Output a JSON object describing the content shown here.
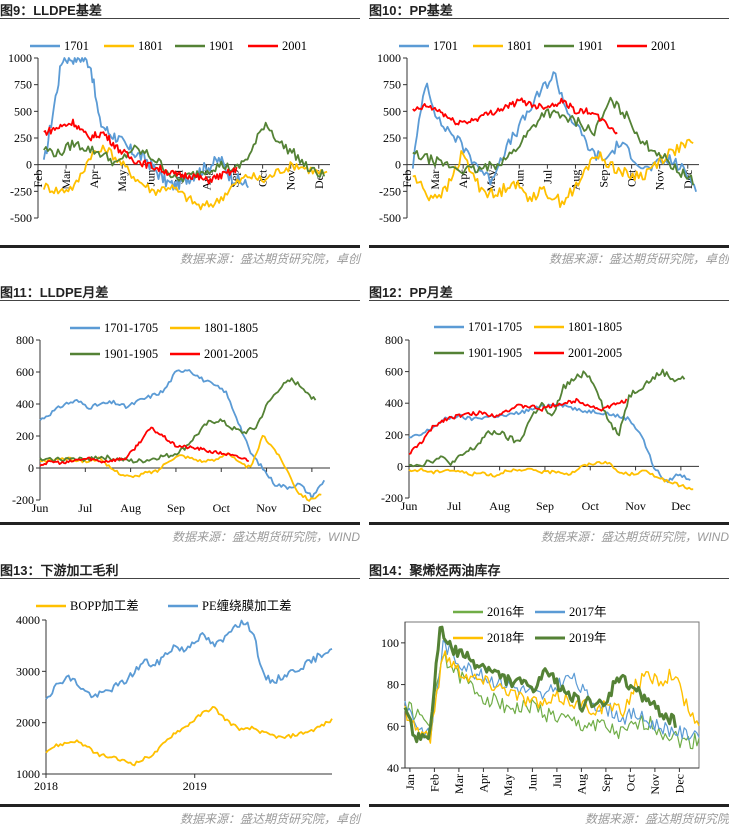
{
  "panels": [
    {
      "id": "fig9",
      "title": "图9：LLDPE基差",
      "source": "数据来源：盛达期货研究院，卓创"
    },
    {
      "id": "fig10",
      "title": "图10：PP基差",
      "source": "数据来源：盛达期货研究院，卓创"
    },
    {
      "id": "fig11",
      "title": "图11：LLDPE月差",
      "source": "数据来源：盛达期货研究院，WIND"
    },
    {
      "id": "fig12",
      "title": "图12：PP月差",
      "source": "数据来源：盛达期货研究院，WIND"
    },
    {
      "id": "fig13",
      "title": "图13：下游加工毛利",
      "source": "数据来源：盛达期货研究院，卓创"
    },
    {
      "id": "fig14",
      "title": "图14：聚烯烃两油库存",
      "source": "数据来源：盛达期货研究院"
    }
  ],
  "chart_data": [
    {
      "id": "fig9",
      "type": "line",
      "ylim": [
        -500,
        1000
      ],
      "yticks": [
        -500,
        -250,
        0,
        250,
        500,
        750,
        1000
      ],
      "xticks": [
        "Feb",
        "Mar",
        "Apr",
        "May",
        "Jun",
        "Jul",
        "Aug",
        "Sep",
        "Oct",
        "Nov",
        "Dec"
      ],
      "series": [
        {
          "name": "1701",
          "color": "#5b9bd5",
          "values": [
            0,
            500,
            1000,
            1000,
            1000,
            950,
            400,
            300,
            250,
            150,
            100,
            50,
            -50,
            -150,
            -200,
            -150,
            -100,
            -50,
            0,
            50,
            -100,
            -150,
            -200
          ]
        },
        {
          "name": "1801",
          "color": "#ffc000",
          "values": [
            -200,
            -250,
            -200,
            100,
            150,
            0,
            -150,
            -250,
            -200,
            -300,
            -400,
            -350,
            -200,
            -100,
            -150,
            -50,
            0,
            -50,
            -100
          ]
        },
        {
          "name": "1901",
          "color": "#548235",
          "values": [
            150,
            100,
            200,
            150,
            100,
            0,
            150,
            100,
            0,
            -150,
            -100,
            -50,
            0,
            -50,
            100,
            400,
            200,
            100,
            -50,
            -100
          ]
        },
        {
          "name": "2001",
          "color": "#ff0000",
          "values": [
            300,
            350,
            400,
            250,
            300,
            150,
            50,
            0,
            -50,
            -100,
            -100,
            -150,
            -100,
            -50
          ]
        }
      ]
    },
    {
      "id": "fig10",
      "type": "line",
      "ylim": [
        -500,
        1000
      ],
      "yticks": [
        -500,
        -250,
        0,
        250,
        500,
        750,
        1000
      ],
      "xticks": [
        "Feb",
        "Mar",
        "Apr",
        "May",
        "Jun",
        "Jul",
        "Aug",
        "Sep",
        "Oct",
        "Nov",
        "Dec"
      ],
      "series": [
        {
          "name": "1701",
          "color": "#5b9bd5",
          "values": [
            0,
            800,
            400,
            300,
            150,
            0,
            -150,
            100,
            300,
            500,
            700,
            850,
            500,
            300,
            100,
            50,
            200,
            100,
            -50,
            0,
            50,
            -50,
            -200
          ]
        },
        {
          "name": "1801",
          "color": "#ffc000",
          "values": [
            -100,
            -300,
            -250,
            100,
            -200,
            -300,
            -150,
            -300,
            -250,
            -350,
            -200,
            100,
            0,
            -100,
            -100,
            50,
            150,
            200
          ]
        },
        {
          "name": "1901",
          "color": "#548235",
          "values": [
            100,
            50,
            0,
            -50,
            -50,
            0,
            100,
            300,
            500,
            450,
            400,
            300,
            600,
            450,
            200,
            100,
            -50,
            -150
          ]
        },
        {
          "name": "2001",
          "color": "#ff0000",
          "values": [
            500,
            550,
            500,
            400,
            400,
            450,
            500,
            550,
            600,
            550,
            550,
            600,
            500,
            500,
            400,
            300
          ]
        }
      ]
    },
    {
      "id": "fig11",
      "type": "line",
      "ylim": [
        -200,
        800
      ],
      "yticks": [
        -200,
        0,
        200,
        400,
        600,
        800
      ],
      "xticks": [
        "Jun",
        "Jul",
        "Aug",
        "Sep",
        "Oct",
        "Nov",
        "Dec"
      ],
      "series": [
        {
          "name": "1701-1705",
          "color": "#5b9bd5",
          "values": [
            300,
            350,
            400,
            420,
            380,
            400,
            410,
            380,
            420,
            450,
            480,
            600,
            620,
            560,
            520,
            480,
            300,
            100,
            0,
            -100,
            -120,
            -100,
            -180,
            -80
          ]
        },
        {
          "name": "1801-1805",
          "color": "#ffc000",
          "values": [
            40,
            50,
            60,
            50,
            40,
            60,
            0,
            -40,
            -60,
            -30,
            -20,
            50,
            80,
            60,
            40,
            50,
            100,
            30,
            0,
            200,
            120,
            0,
            -150,
            -200,
            -160
          ]
        },
        {
          "name": "1901-1905",
          "color": "#548235",
          "values": [
            50,
            50,
            60,
            50,
            60,
            70,
            60,
            50,
            40,
            50,
            70,
            80,
            120,
            200,
            280,
            300,
            250,
            220,
            250,
            400,
            500,
            550,
            500,
            420
          ]
        },
        {
          "name": "2001-2005",
          "color": "#ff0000",
          "values": [
            20,
            40,
            30,
            50,
            60,
            40,
            50,
            60,
            150,
            250,
            200,
            140,
            130,
            120,
            100,
            90,
            70,
            50
          ]
        }
      ]
    },
    {
      "id": "fig12",
      "type": "line",
      "ylim": [
        -200,
        800
      ],
      "yticks": [
        -200,
        0,
        200,
        400,
        600,
        800
      ],
      "xticks": [
        "Jun",
        "Jul",
        "Aug",
        "Sep",
        "Oct",
        "Nov",
        "Dec"
      ],
      "series": [
        {
          "name": "1701-1705",
          "color": "#5b9bd5",
          "values": [
            180,
            200,
            250,
            300,
            320,
            300,
            310,
            320,
            320,
            340,
            360,
            380,
            400,
            380,
            350,
            350,
            340,
            320,
            300,
            200,
            0,
            -100,
            -50,
            -80
          ]
        },
        {
          "name": "1801-1805",
          "color": "#ffc000",
          "values": [
            -30,
            -20,
            -40,
            -20,
            -30,
            -50,
            -40,
            -60,
            -20,
            -30,
            -20,
            -40,
            -30,
            -50,
            0,
            20,
            30,
            -40,
            -50,
            -30,
            -60,
            -100,
            -120,
            -150
          ]
        },
        {
          "name": "1901-1905",
          "color": "#548235",
          "values": [
            20,
            10,
            40,
            50,
            20,
            80,
            120,
            200,
            220,
            180,
            150,
            300,
            400,
            300,
            500,
            550,
            600,
            500,
            300,
            200,
            450,
            500,
            550,
            600,
            550,
            560
          ]
        },
        {
          "name": "2001-2005",
          "color": "#ff0000",
          "values": [
            80,
            150,
            250,
            300,
            320,
            330,
            340,
            320,
            350,
            380,
            380,
            360,
            390,
            400,
            420,
            380,
            360,
            390,
            420
          ]
        }
      ]
    },
    {
      "id": "fig13",
      "type": "line",
      "ylim": [
        1000,
        4000
      ],
      "yticks": [
        1000,
        2000,
        3000,
        4000
      ],
      "xticks": [
        "2018",
        "2019"
      ],
      "series": [
        {
          "name": "BOPP加工差",
          "color": "#ffc000",
          "values": [
            1450,
            1550,
            1600,
            1650,
            1550,
            1400,
            1350,
            1300,
            1250,
            1200,
            1300,
            1400,
            1600,
            1800,
            1900,
            2050,
            2200,
            2300,
            2100,
            1950,
            1850,
            1900,
            1800,
            1750,
            1700,
            1750,
            1800,
            1850,
            1950,
            2050
          ]
        },
        {
          "name": "PE缠绕膜加工差",
          "color": "#5b9bd5",
          "values": [
            2500,
            2700,
            2900,
            2800,
            2600,
            2500,
            2600,
            2700,
            2800,
            3000,
            3200,
            3100,
            3300,
            3500,
            3400,
            3600,
            3700,
            3500,
            3600,
            3900,
            3950,
            3800,
            2900,
            2800,
            2900,
            3000,
            3100,
            3200,
            3350,
            3450
          ]
        }
      ]
    },
    {
      "id": "fig14",
      "type": "line",
      "ylim": [
        40,
        110
      ],
      "yticks": [
        40,
        60,
        80,
        100
      ],
      "xticks": [
        "Jan",
        "Feb",
        "Mar",
        "Apr",
        "May",
        "Jun",
        "Jul",
        "Aug",
        "Sep",
        "Oct",
        "Nov",
        "Dec"
      ],
      "series": [
        {
          "name": "2016年",
          "color": "#70ad47",
          "values": [
            70,
            65,
            60,
            95,
            85,
            80,
            75,
            72,
            70,
            68,
            70,
            66,
            64,
            62,
            60,
            62,
            58,
            56,
            60,
            62,
            58,
            55,
            52,
            54
          ]
        },
        {
          "name": "2017年",
          "color": "#5b9bd5",
          "values": [
            72,
            60,
            55,
            100,
            92,
            88,
            84,
            82,
            80,
            78,
            76,
            74,
            80,
            84,
            76,
            70,
            68,
            64,
            66,
            62,
            60,
            58,
            56,
            58
          ]
        },
        {
          "name": "2018年",
          "color": "#ffc000",
          "values": [
            68,
            58,
            55,
            96,
            88,
            84,
            82,
            80,
            78,
            74,
            72,
            70,
            74,
            72,
            70,
            68,
            70,
            66,
            80,
            84,
            82,
            86,
            70,
            60
          ]
        },
        {
          "name": "2019年",
          "color": "#548235",
          "values": [
            66,
            55,
            52,
            108,
            96,
            94,
            90,
            88,
            84,
            82,
            80,
            78,
            86,
            80,
            76,
            70,
            72,
            68,
            84,
            80,
            76,
            70,
            66,
            62
          ]
        }
      ]
    }
  ]
}
